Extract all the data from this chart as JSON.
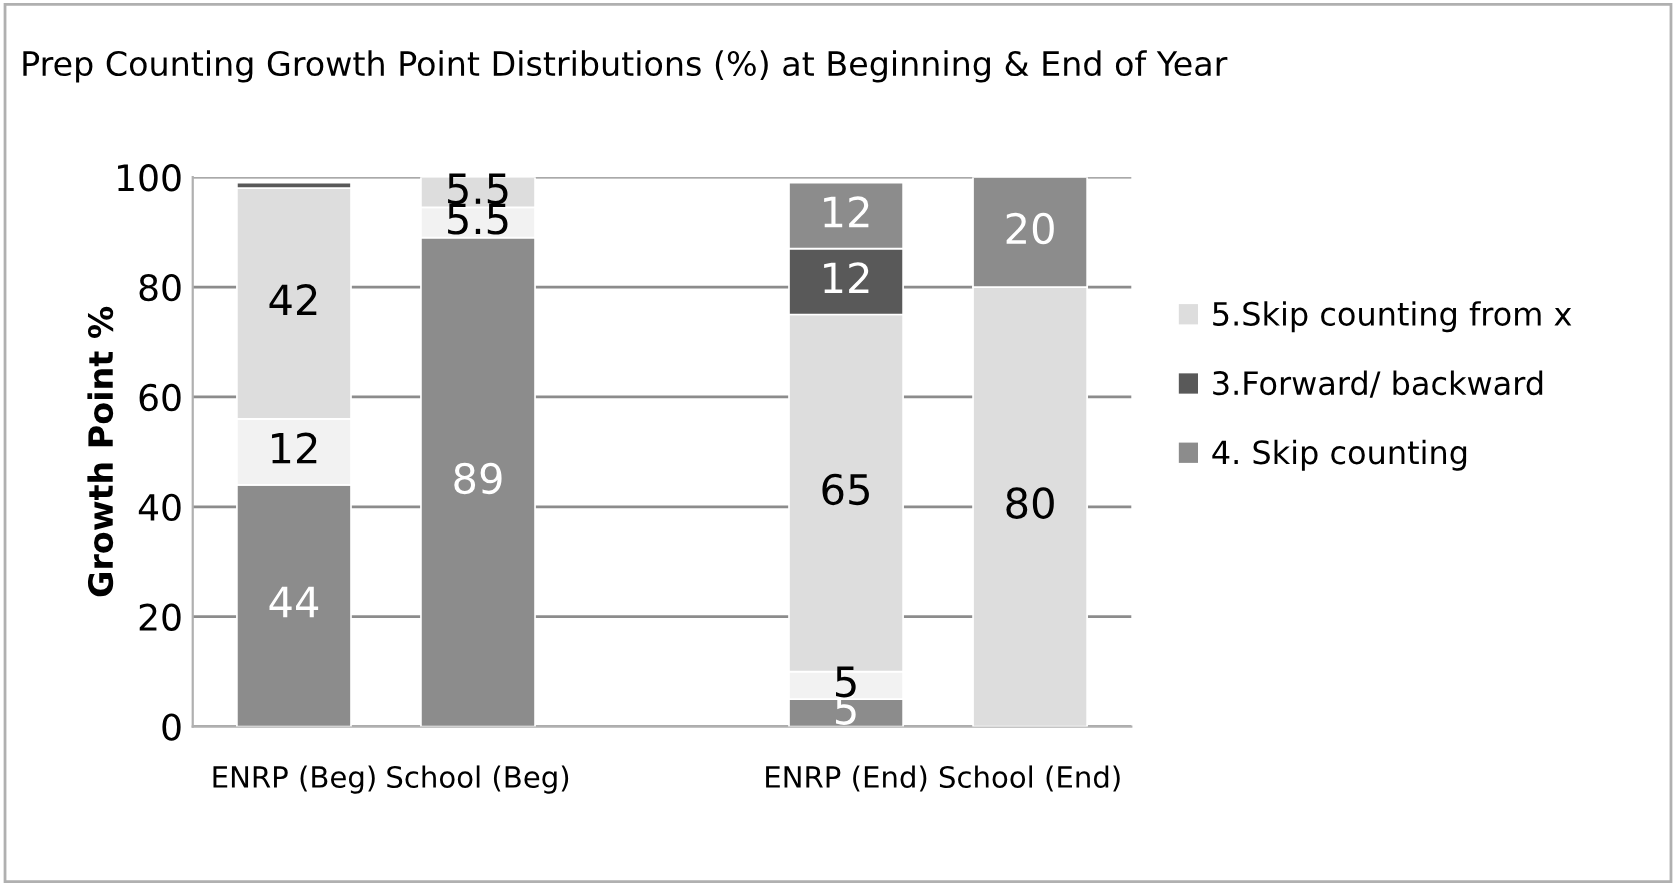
{
  "chart_data": {
    "type": "bar",
    "stacked": true,
    "title": "Prep Counting Growth Point Distributions (%) at Beginning & End of Year",
    "ylabel": "Growth Point %",
    "categories": [
      "ENRP (Beg)",
      "School (Beg)",
      null,
      "ENRP (End)",
      "School (End)"
    ],
    "series": [
      {
        "color": "#8c8c8c",
        "values": [
          44,
          89,
          null,
          5,
          null
        ],
        "value_labels": [
          "44",
          "89",
          null,
          "5",
          null
        ]
      },
      {
        "color": "#f2f2f2",
        "values": [
          12,
          5.5,
          null,
          5,
          null
        ],
        "value_labels": [
          "12",
          "5.5",
          null,
          "5",
          null
        ]
      },
      {
        "name": "5.Skip counting from x",
        "color": "#dddddd",
        "values": [
          42,
          5.5,
          null,
          65,
          80
        ],
        "value_labels": [
          "42",
          "5.5",
          null,
          "65",
          "80"
        ]
      },
      {
        "name": "3.Forward/ backward",
        "color": "#595959",
        "values": [
          1,
          null,
          null,
          12,
          null
        ],
        "value_labels": [
          null,
          null,
          null,
          "12",
          null
        ]
      },
      {
        "name": "4. Skip counting",
        "color": "#8c8c8c",
        "values": [
          null,
          null,
          null,
          12,
          20
        ],
        "value_labels": [
          null,
          null,
          null,
          "12",
          "20"
        ]
      }
    ],
    "ylim": [
      0,
      100
    ],
    "yticks": [
      0,
      20,
      40,
      60,
      80,
      100
    ],
    "grid": "y",
    "legend": "right"
  }
}
